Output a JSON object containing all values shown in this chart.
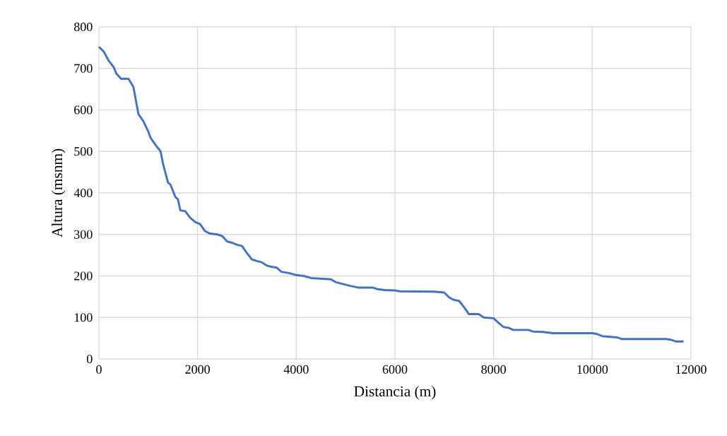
{
  "chart_data": {
    "type": "line",
    "xlabel": "Distancia (m)",
    "ylabel": "Altura (msnm)",
    "x": [
      0,
      100,
      200,
      300,
      350,
      450,
      600,
      700,
      800,
      900,
      1000,
      1050,
      1150,
      1250,
      1300,
      1400,
      1450,
      1550,
      1600,
      1650,
      1750,
      1850,
      1950,
      2050,
      2150,
      2250,
      2400,
      2500,
      2600,
      2700,
      2800,
      2900,
      3000,
      3100,
      3200,
      3300,
      3400,
      3500,
      3600,
      3700,
      3850,
      4000,
      4150,
      4300,
      4700,
      4800,
      4900,
      5100,
      5250,
      5550,
      5650,
      5800,
      6000,
      6100,
      6800,
      7000,
      7100,
      7200,
      7300,
      7400,
      7500,
      7700,
      7800,
      8000,
      8100,
      8200,
      8300,
      8400,
      8700,
      8800,
      9000,
      9200,
      10000,
      10100,
      10200,
      10500,
      10600,
      11500,
      11600,
      11700,
      11850
    ],
    "series": [
      {
        "color": "#4472c4",
        "values": [
          752,
          740,
          718,
          703,
          688,
          675,
          675,
          655,
          590,
          573,
          548,
          532,
          515,
          500,
          470,
          425,
          420,
          390,
          385,
          358,
          356,
          340,
          330,
          325,
          308,
          302,
          300,
          296,
          283,
          280,
          275,
          272,
          255,
          240,
          236,
          233,
          225,
          222,
          220,
          210,
          207,
          202,
          200,
          195,
          192,
          185,
          182,
          176,
          172,
          172,
          168,
          166,
          165,
          163,
          162,
          160,
          148,
          142,
          140,
          125,
          108,
          108,
          100,
          98,
          87,
          77,
          75,
          70,
          70,
          66,
          65,
          62,
          62,
          60,
          55,
          52,
          48,
          48,
          46,
          42,
          42
        ]
      }
    ],
    "xlim": [
      0,
      12000
    ],
    "ylim": [
      0,
      800
    ],
    "xticks": [
      0,
      2000,
      4000,
      6000,
      8000,
      10000,
      12000
    ],
    "yticks": [
      0,
      100,
      200,
      300,
      400,
      500,
      600,
      700,
      800
    ],
    "grid": true,
    "legend": false,
    "marker": "none",
    "line_style": "solid"
  }
}
